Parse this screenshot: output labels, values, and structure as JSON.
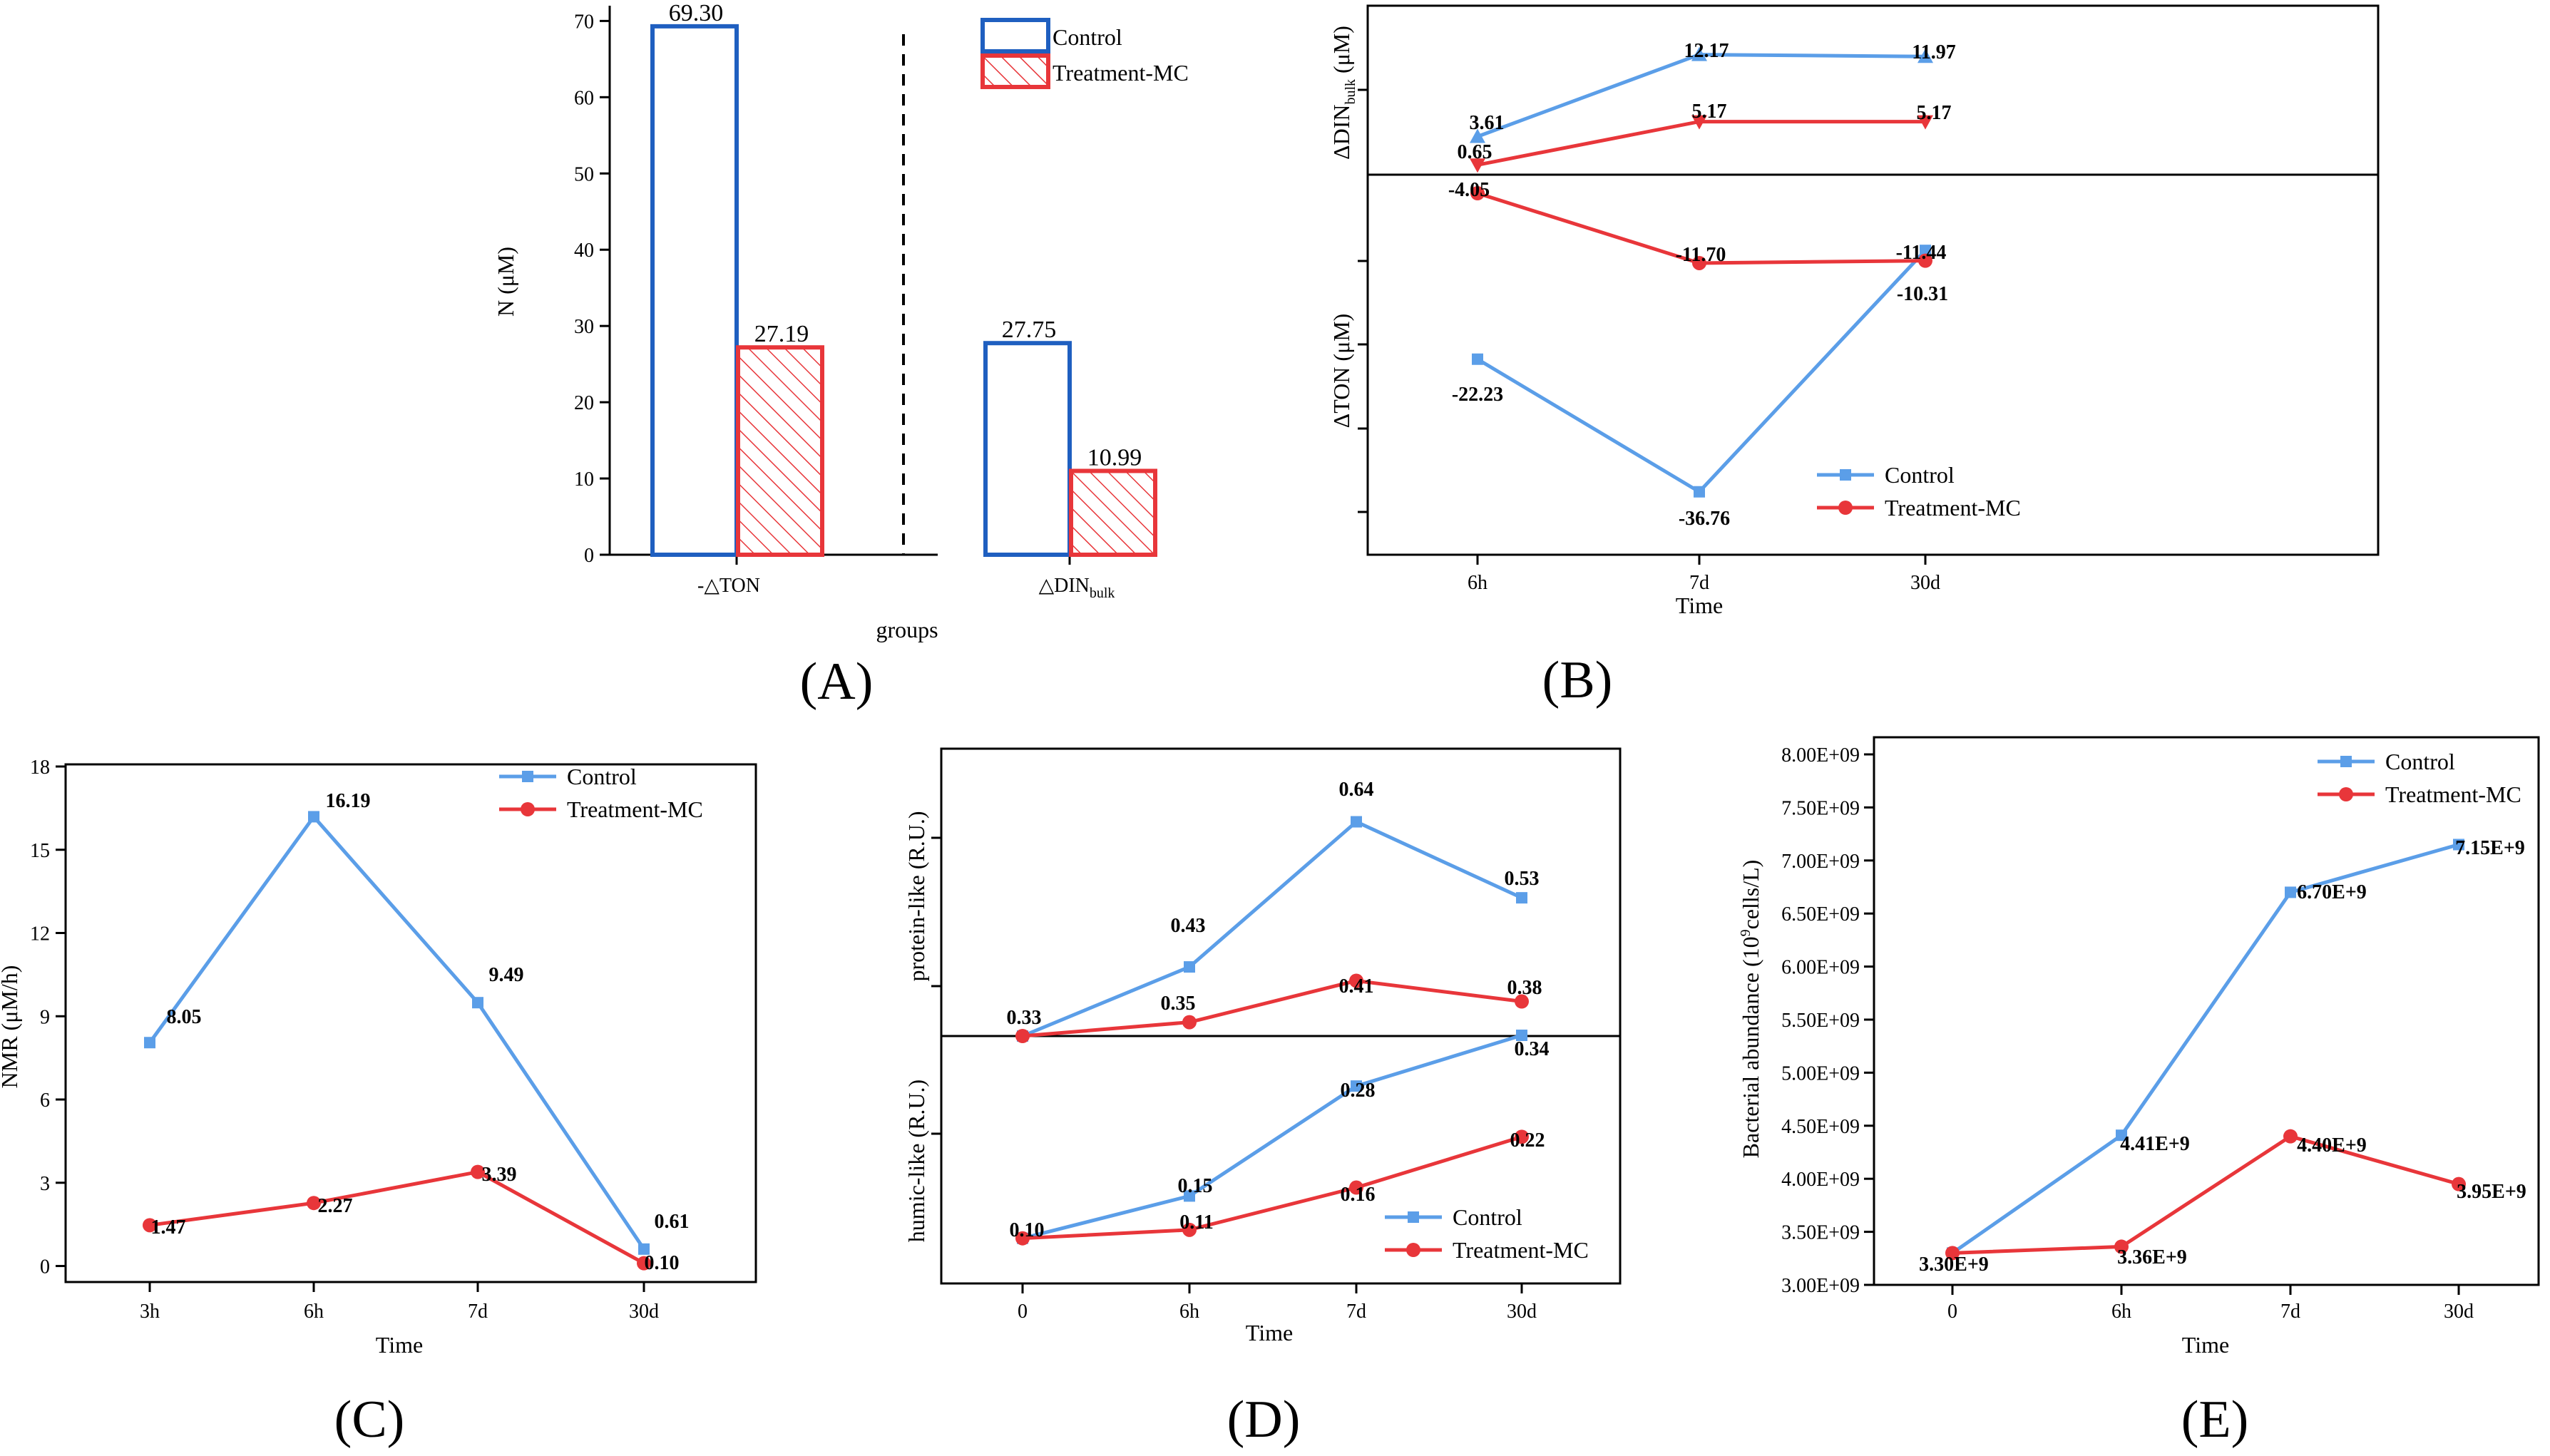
{
  "colors": {
    "control": "#5b9ee8",
    "treatment": "#e8363a",
    "control_bar": "#1f5fc0",
    "treatment_bar": "#e8363a"
  },
  "chart_data": [
    {
      "id": "A",
      "panel_label": "(A)",
      "type": "bar",
      "categories": [
        "-△TON",
        "△DIN"
      ],
      "category_subscripts": [
        "",
        "bulk"
      ],
      "series": [
        {
          "name": "Control",
          "values": [
            69.3,
            27.75
          ],
          "value_labels": [
            "69.30",
            "27.75"
          ]
        },
        {
          "name": "Treatment-MC",
          "values": [
            27.19,
            10.99
          ],
          "value_labels": [
            "27.19",
            "10.99"
          ]
        }
      ],
      "ylabel": "N (μM)",
      "xlabel": "groups",
      "ylim": [
        0,
        70
      ],
      "yticks": [
        "0",
        "10",
        "20",
        "30",
        "40",
        "50",
        "60",
        "70"
      ],
      "legend": "top-right"
    },
    {
      "id": "B",
      "panel_label": "(B)",
      "type": "line",
      "categories": [
        "6h",
        "7d",
        "30d"
      ],
      "xlabel": "Time",
      "top": {
        "ylabel": "ΔDIN",
        "ylabel_subscript": "bulk",
        "ylabel_unit": "(μM)",
        "ylim": [
          0,
          14
        ],
        "series": [
          {
            "name": "Control",
            "values": [
              3.61,
              12.17,
              11.97
            ],
            "value_labels": [
              "3.61",
              "12.17",
              "11.97"
            ]
          },
          {
            "name": "Treatment-MC",
            "values": [
              0.65,
              5.17,
              5.17
            ],
            "value_labels": [
              "0.65",
              "5.17",
              "5.17"
            ]
          }
        ]
      },
      "bottom": {
        "ylabel": "ΔTON (μM)",
        "ylim": [
          -41,
          -1
        ],
        "series": [
          {
            "name": "Control",
            "values": [
              -22.23,
              -36.76,
              -10.31
            ],
            "value_labels": [
              "-22.23",
              "-36.76",
              "-10.31"
            ]
          },
          {
            "name": "Treatment-MC",
            "values": [
              -4.05,
              -11.7,
              -11.44
            ],
            "value_labels": [
              "-4.05",
              "-11.70",
              "-11.44"
            ]
          }
        ]
      },
      "legend": "bottom-right"
    },
    {
      "id": "C",
      "panel_label": "(C)",
      "type": "line",
      "categories": [
        "3h",
        "6h",
        "7d",
        "30d"
      ],
      "xlabel": "Time",
      "ylabel": "NMR (μM/h)",
      "ylim": [
        -0.5,
        18
      ],
      "yticks": [
        "0",
        "3",
        "6",
        "9",
        "12",
        "15",
        "18"
      ],
      "series": [
        {
          "name": "Control",
          "values": [
            8.05,
            16.19,
            9.49,
            0.61
          ],
          "value_labels": [
            "8.05",
            "16.19",
            "9.49",
            "0.61"
          ]
        },
        {
          "name": "Treatment-MC",
          "values": [
            1.47,
            2.27,
            3.39,
            0.1
          ],
          "value_labels": [
            "1.47",
            "2.27",
            "3.39",
            "0.10"
          ]
        }
      ],
      "legend": "top-right"
    },
    {
      "id": "D",
      "panel_label": "(D)",
      "type": "line",
      "categories": [
        "0",
        "6h",
        "7d",
        "30d"
      ],
      "xlabel": "Time",
      "top": {
        "ylabel": "protein-like (R.U.)",
        "ylim": [
          0.33,
          0.72
        ],
        "series": [
          {
            "name": "Control",
            "values": [
              0.33,
              0.43,
              0.64,
              0.53
            ],
            "value_labels": [
              "0.33",
              "0.43",
              "0.64",
              "0.53"
            ]
          },
          {
            "name": "Treatment-MC",
            "values": [
              0.33,
              0.35,
              0.41,
              0.38
            ],
            "value_labels": [
              "0.33",
              "0.35",
              "0.41",
              "0.38"
            ]
          }
        ]
      },
      "bottom": {
        "ylabel": "humic-like (R.U.)",
        "ylim": [
          0.05,
          0.34
        ],
        "series": [
          {
            "name": "Control",
            "values": [
              0.1,
              0.15,
              0.28,
              0.34
            ],
            "value_labels": [
              "0.10",
              "0.15",
              "0.28",
              "0.34"
            ]
          },
          {
            "name": "Treatment-MC",
            "values": [
              0.1,
              0.11,
              0.16,
              0.22
            ],
            "value_labels": [
              "0.10",
              "0.11",
              "0.16",
              "0.22"
            ]
          }
        ]
      },
      "legend": "bottom-right"
    },
    {
      "id": "E",
      "panel_label": "(E)",
      "type": "line",
      "categories": [
        "0",
        "6h",
        "7d",
        "30d"
      ],
      "xlabel": "Time",
      "ylabel_pre": "Bacterial abundance (10",
      "ylabel_sup": "9",
      "ylabel_post": "cells/L)",
      "ylim": [
        3000000000.0,
        8000000000.0
      ],
      "yticks": [
        "3.00E+09",
        "3.50E+09",
        "4.00E+09",
        "4.50E+09",
        "5.00E+09",
        "5.50E+09",
        "6.00E+09",
        "6.50E+09",
        "7.00E+09",
        "7.50E+09",
        "8.00E+09"
      ],
      "series": [
        {
          "name": "Control",
          "values": [
            3300000000.0,
            4410000000.0,
            6700000000.0,
            7150000000.0
          ],
          "value_labels": [
            "3.30E+9",
            "4.41E+9",
            "6.70E+9",
            "7.15E+9"
          ]
        },
        {
          "name": "Treatment-MC",
          "values": [
            3300000000.0,
            3360000000.0,
            4400000000.0,
            3950000000.0
          ],
          "value_labels": [
            "3.30E+9",
            "3.36E+9",
            "4.40E+9",
            "3.95E+9"
          ]
        }
      ],
      "legend": "top-right"
    }
  ]
}
